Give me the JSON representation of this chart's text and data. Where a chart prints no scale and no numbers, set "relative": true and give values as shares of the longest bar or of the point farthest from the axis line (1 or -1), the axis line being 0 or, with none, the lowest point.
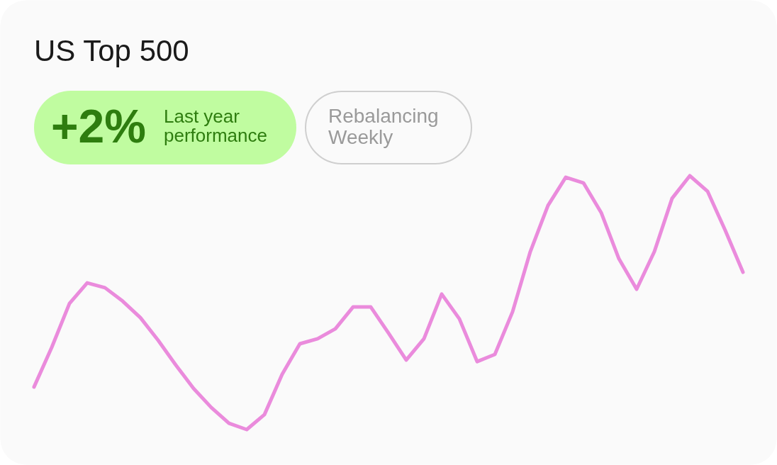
{
  "chart_data": {
    "type": "line",
    "title": "US Top 500",
    "annotations": [
      "+2%",
      "Last year performance",
      "Rebalancing Weekly"
    ],
    "relative": true,
    "categories": [
      null,
      null,
      null,
      null,
      null,
      null,
      null,
      null,
      null,
      null,
      null,
      null,
      null,
      null,
      null,
      null,
      null,
      null,
      null,
      null,
      null,
      null,
      null,
      null,
      null,
      null,
      null,
      null,
      null,
      null,
      null,
      null,
      null,
      null,
      null,
      null,
      null,
      null,
      null,
      null,
      null
    ],
    "series": [
      {
        "color": "#ea8bdc",
        "values": [
          0.168,
          0.324,
          0.497,
          0.578,
          0.559,
          0.506,
          0.441,
          0.352,
          0.254,
          0.162,
          0.087,
          0.025,
          0,
          0.059,
          0.218,
          0.338,
          0.358,
          0.397,
          0.483,
          0.483,
          0.38,
          0.274,
          0.358,
          0.534,
          0.436,
          0.268,
          0.296,
          0.464,
          0.701,
          0.883,
          0.994,
          0.972,
          0.855,
          0.673,
          0.553,
          0.701,
          0.911,
          1,
          0.939,
          0.785,
          0.62
        ]
      }
    ],
    "marker": "none",
    "line_style": "solid"
  }
}
